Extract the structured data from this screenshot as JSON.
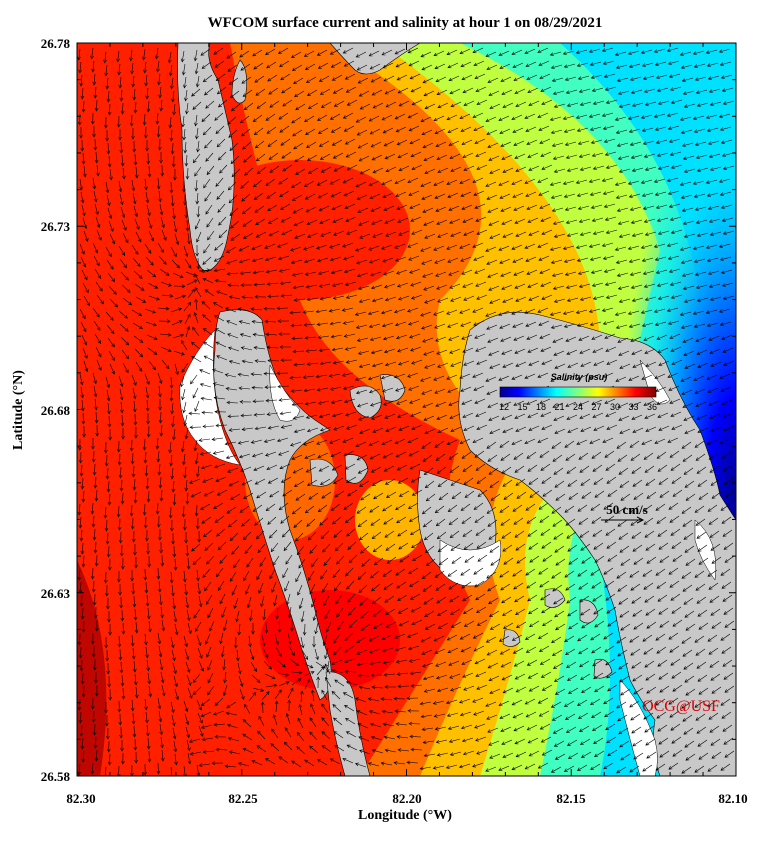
{
  "title": "WFCOM surface current and salinity at hour 1 on 08/29/2021",
  "credit": "OCG@USF",
  "chart_data": {
    "type": "heatmap",
    "variable": "Salinity",
    "xlabel": "Longitude (°W)",
    "ylabel": "Latitude (°N)",
    "x_ticks": [
      "82.30",
      "82.25",
      "82.20",
      "82.15",
      "82.10"
    ],
    "y_ticks": [
      "26.78",
      "26.73",
      "26.68",
      "26.63",
      "26.58"
    ],
    "xlim": [
      82.3,
      82.1
    ],
    "ylim": [
      26.58,
      26.78
    ],
    "colorbar": {
      "title": "Salinity (psu)",
      "ticks": [
        "12",
        "15",
        "18",
        "21",
        "24",
        "27",
        "30",
        "33",
        "36"
      ],
      "range": [
        12,
        36
      ],
      "colormap": "jet"
    },
    "scale_vector": {
      "label": "50 cm/s",
      "value": 50
    }
  },
  "colors": {
    "land": "#c8c8c8",
    "ocean_bg": "#ffffff",
    "arrow": "#000000",
    "credit": "#e00000"
  }
}
